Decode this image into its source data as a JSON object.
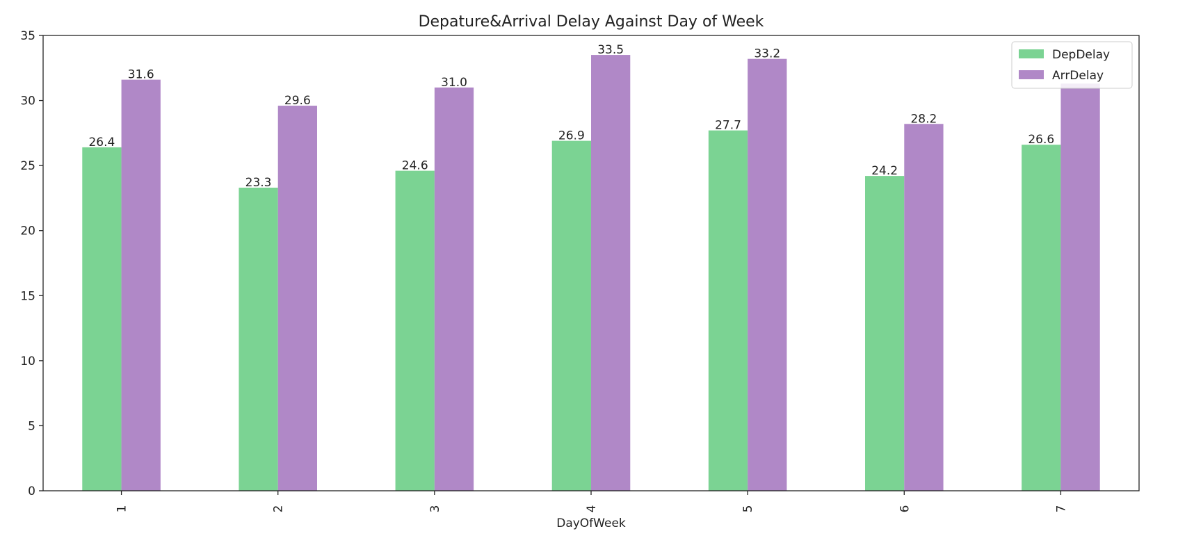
{
  "chart_data": {
    "type": "bar",
    "title": "Depature&Arrival Delay Against Day of Week",
    "xlabel": "DayOfWeek",
    "ylabel": "",
    "categories": [
      "1",
      "2",
      "3",
      "4",
      "5",
      "6",
      "7"
    ],
    "series": [
      {
        "name": "DepDelay",
        "color": "#7bd393",
        "values": [
          26.4,
          23.3,
          24.6,
          26.9,
          27.7,
          24.2,
          26.6
        ]
      },
      {
        "name": "ArrDelay",
        "color": "#b088c7",
        "values": [
          31.6,
          29.6,
          31.0,
          33.5,
          33.2,
          28.2,
          31.3
        ]
      }
    ],
    "data_labels": [
      [
        "26.4",
        "23.3",
        "24.6",
        "26.9",
        "27.7",
        "24.2",
        "26.6"
      ],
      [
        "31.6",
        "29.6",
        "31.0",
        "33.5",
        "33.2",
        "28.2",
        ""
      ]
    ],
    "ylim": [
      0,
      35
    ],
    "yticks": [
      0,
      5,
      10,
      15,
      20,
      25,
      30,
      35
    ],
    "grid": false,
    "legend": "top-right"
  }
}
